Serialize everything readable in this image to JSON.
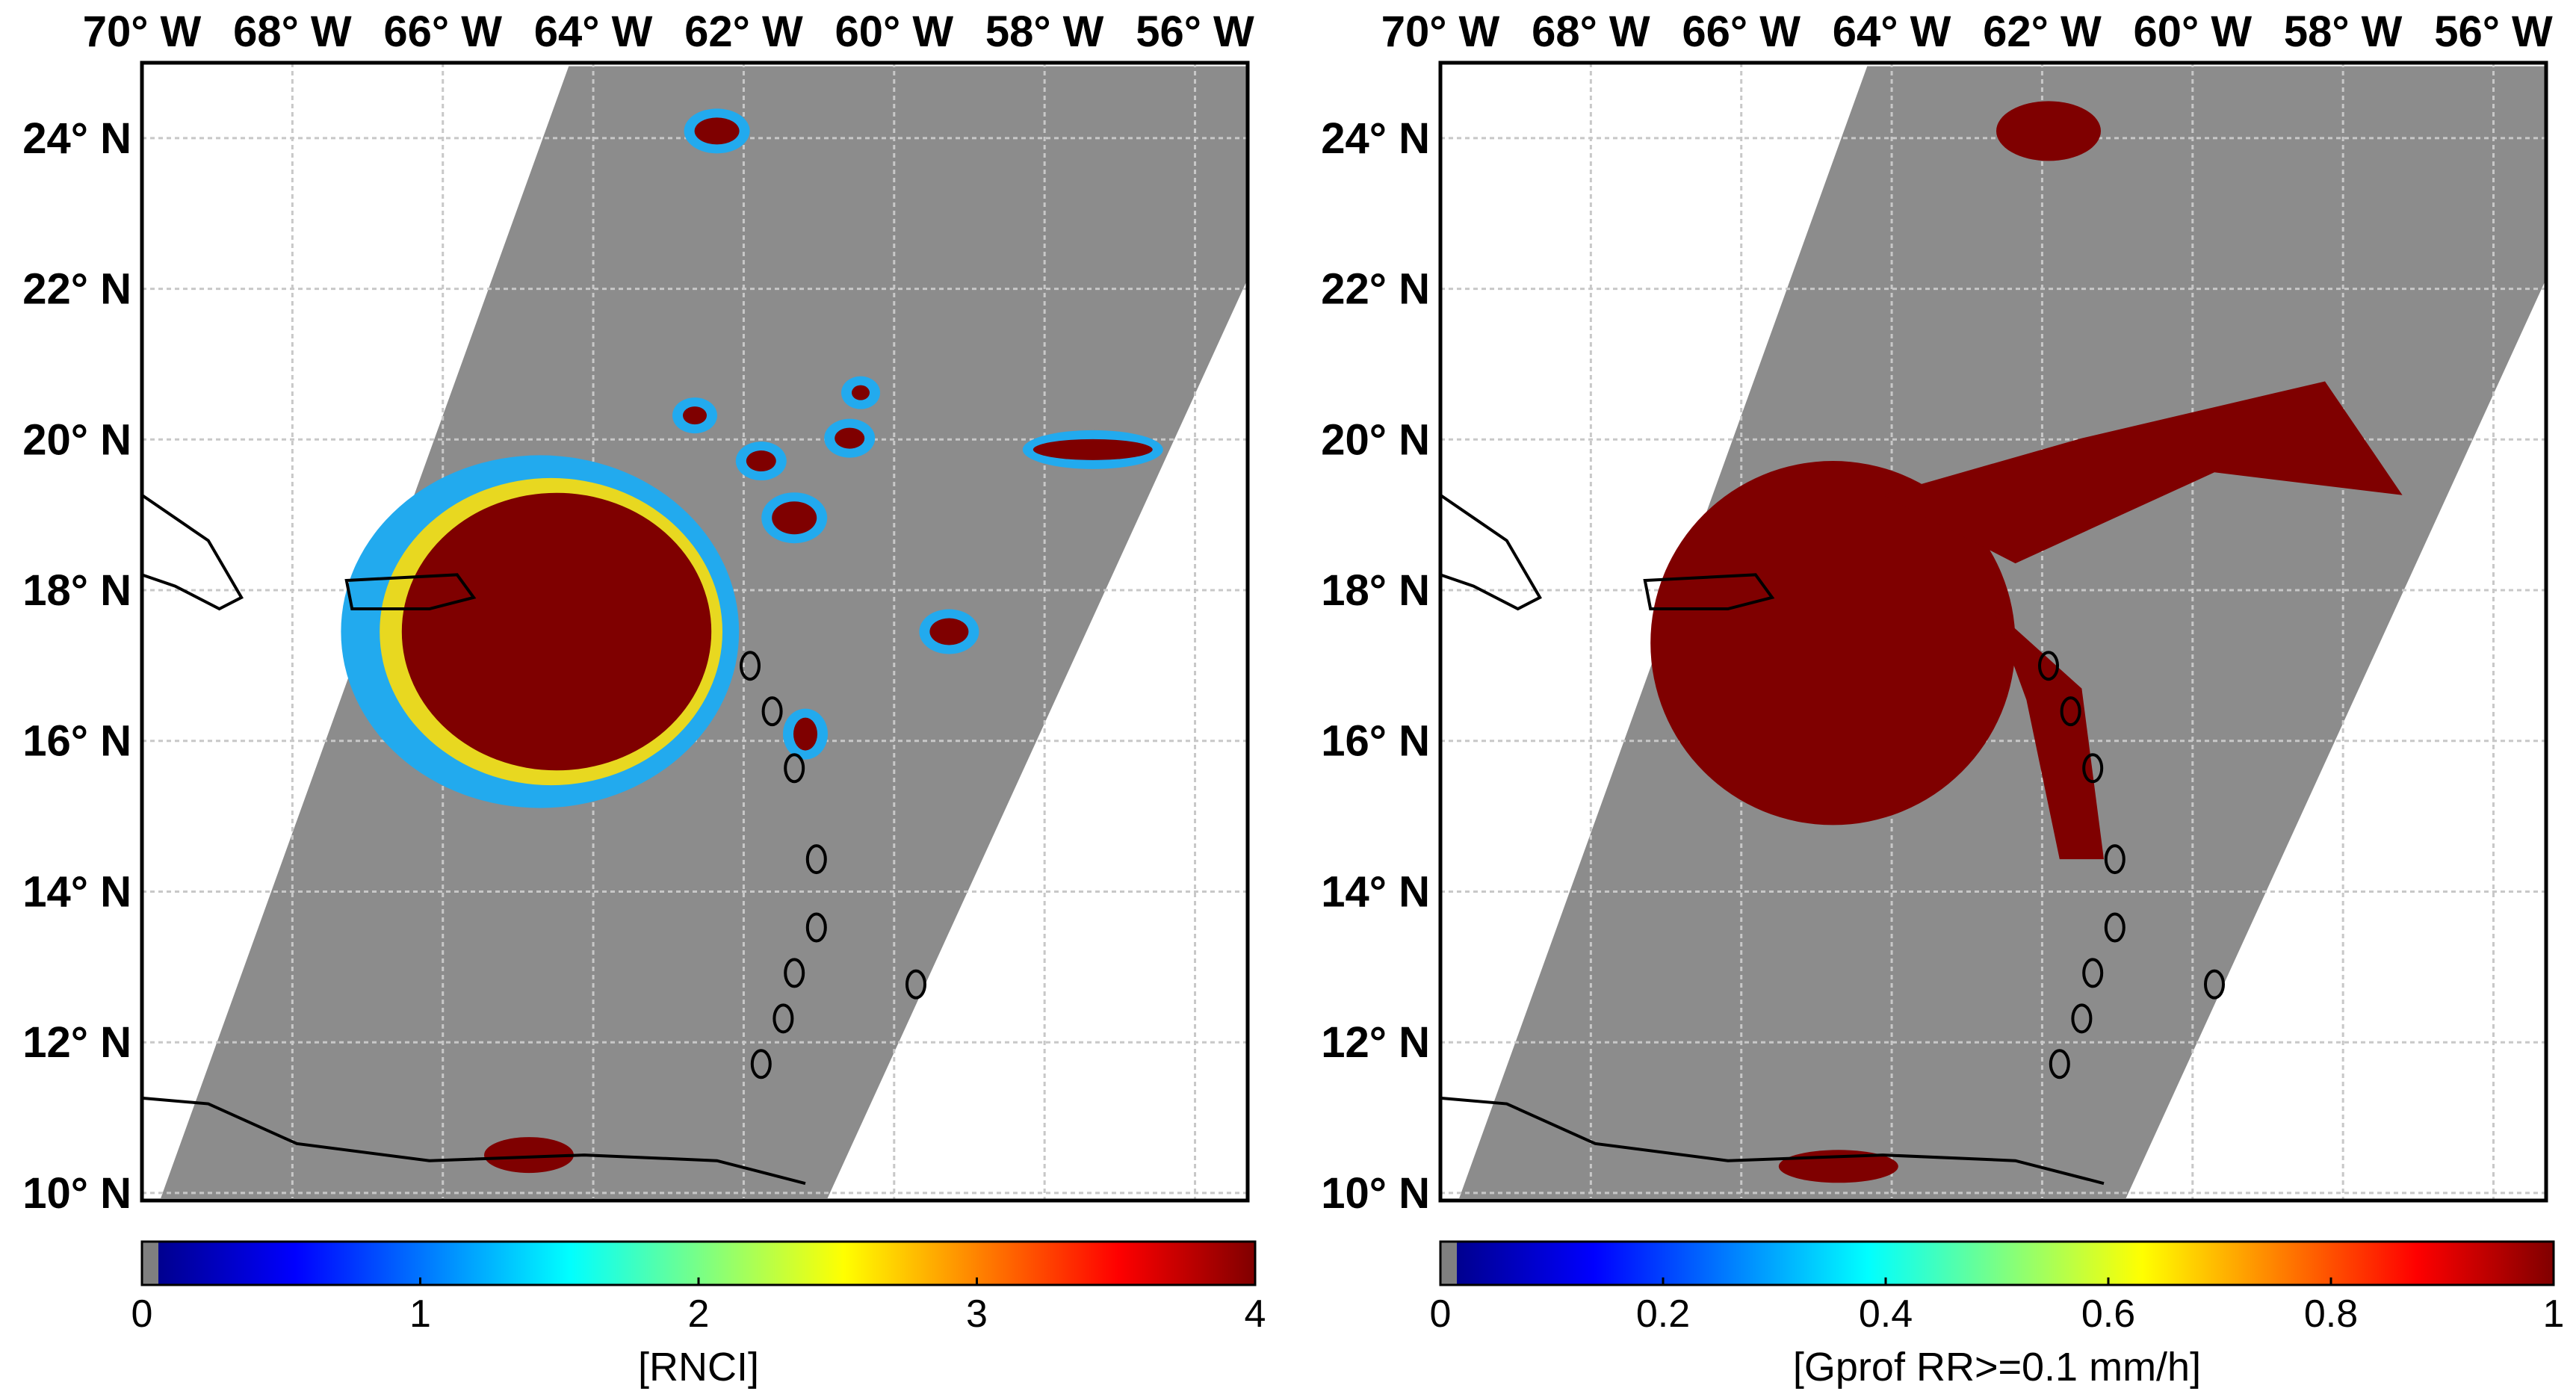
{
  "panels": [
    {
      "id": "left",
      "lon_labels": [
        "70° W",
        "68° W",
        "66° W",
        "64° W",
        "62° W",
        "60° W",
        "58° W",
        "56° W"
      ],
      "lat_labels": [
        "24° N",
        "22° N",
        "20° N",
        "18° N",
        "16° N",
        "14° N",
        "12° N",
        "10° N"
      ],
      "colorbar": {
        "ticks": [
          "0",
          "1",
          "2",
          "3",
          "4"
        ],
        "range": [
          0,
          4
        ],
        "label": "[RNCI]"
      }
    },
    {
      "id": "right",
      "lon_labels": [
        "70° W",
        "68° W",
        "66° W",
        "64° W",
        "62° W",
        "60° W",
        "58° W",
        "56° W"
      ],
      "lat_labels": [
        "24° N",
        "22° N",
        "20° N",
        "18° N",
        "16° N",
        "14° N",
        "12° N",
        "10° N"
      ],
      "colorbar": {
        "ticks": [
          "0",
          "0.2",
          "0.4",
          "0.6",
          "0.8",
          "1"
        ],
        "range": [
          0,
          1
        ],
        "label": "[Gprof RR>=0.1 mm/h]"
      }
    }
  ],
  "map_extent": {
    "lon": [
      -70,
      -55.3
    ],
    "lat": [
      9.9,
      25
    ]
  },
  "colors": {
    "swath": "#8c8c8c",
    "storm": "#7f0000",
    "grid": "#c8c8c8",
    "coast": "#000000",
    "no_data": "#808080"
  },
  "colormap": "jet"
}
